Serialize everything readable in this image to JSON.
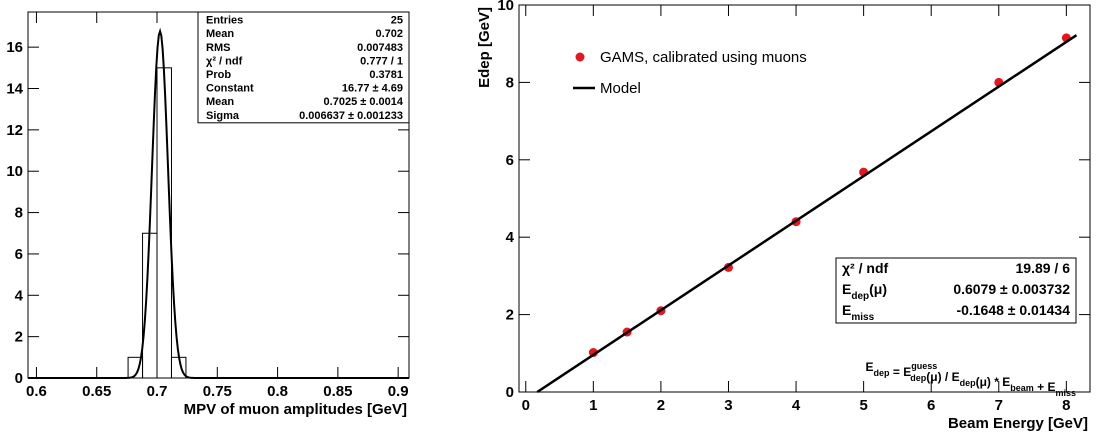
{
  "chart_data": [
    {
      "type": "histogram",
      "x_label": "MPV of muon amplitudes [GeV]",
      "bins": [
        0.676,
        0.688,
        0.7,
        0.712,
        0.724
      ],
      "values": [
        1,
        7,
        15,
        1
      ],
      "color": "#000000",
      "xlim": [
        0.593,
        0.909
      ],
      "xticks": [
        0.6,
        0.65,
        0.7,
        0.75,
        0.8,
        0.85,
        0.9
      ],
      "ylim": [
        0,
        17.7
      ],
      "yticks": [
        0,
        2,
        4,
        6,
        8,
        10,
        12,
        14,
        16
      ],
      "fit": {
        "constant": 16.77,
        "mean": 0.7025,
        "sigma": 0.006637
      },
      "stats": [
        [
          "Entries",
          "25"
        ],
        [
          "Mean",
          "0.702"
        ],
        [
          "RMS",
          "0.007483"
        ],
        [
          "χ² / ndf",
          "0.777 / 1"
        ],
        [
          "Prob",
          "0.3781"
        ],
        [
          "Constant",
          "16.77 ± 4.69"
        ],
        [
          "Mean",
          "0.7025 ± 0.0014"
        ],
        [
          "Sigma",
          "0.006637 ± 0.001233"
        ]
      ]
    },
    {
      "type": "scatter",
      "x_label": "Beam Energy [GeV]",
      "y_label": "Edep [GeV]",
      "xlim": [
        -0.1,
        8.35
      ],
      "xticks": [
        0,
        1,
        2,
        3,
        4,
        5,
        6,
        7,
        8
      ],
      "ylim": [
        0,
        10
      ],
      "yticks": [
        0,
        2,
        4,
        6,
        8,
        10
      ],
      "series": [
        {
          "name": "GAMS, calibrated using muons",
          "color": "#e8141e",
          "x": [
            1,
            1.5,
            2,
            3,
            4,
            5,
            7,
            8
          ],
          "y": [
            1.02,
            1.55,
            2.1,
            3.22,
            4.4,
            5.68,
            8.0,
            9.15
          ]
        },
        {
          "name": "Model",
          "color": "#000000",
          "x": [
            0.17,
            8.15
          ],
          "y": [
            0,
            9.22
          ]
        }
      ],
      "stats": [
        {
          "label": "χ² / ndf",
          "value": "19.89 / 6"
        },
        {
          "label": "E",
          "sub": "dep",
          "suffix": "(μ)",
          "value": "0.6079 ± 0.003732"
        },
        {
          "label": "E",
          "sub": "miss",
          "value": "-0.1648 ± 0.01434"
        }
      ],
      "formula": [
        {
          "text": "E",
          "sub": "dep"
        },
        {
          "text": " =  E",
          "sub": "dep",
          "sup": "guess"
        },
        {
          "text": "(μ) / E",
          "sub": "dep"
        },
        {
          "text": "(μ)  *  E",
          "sub": "beam"
        },
        {
          "text": " + E",
          "sub": "miss"
        }
      ]
    }
  ]
}
